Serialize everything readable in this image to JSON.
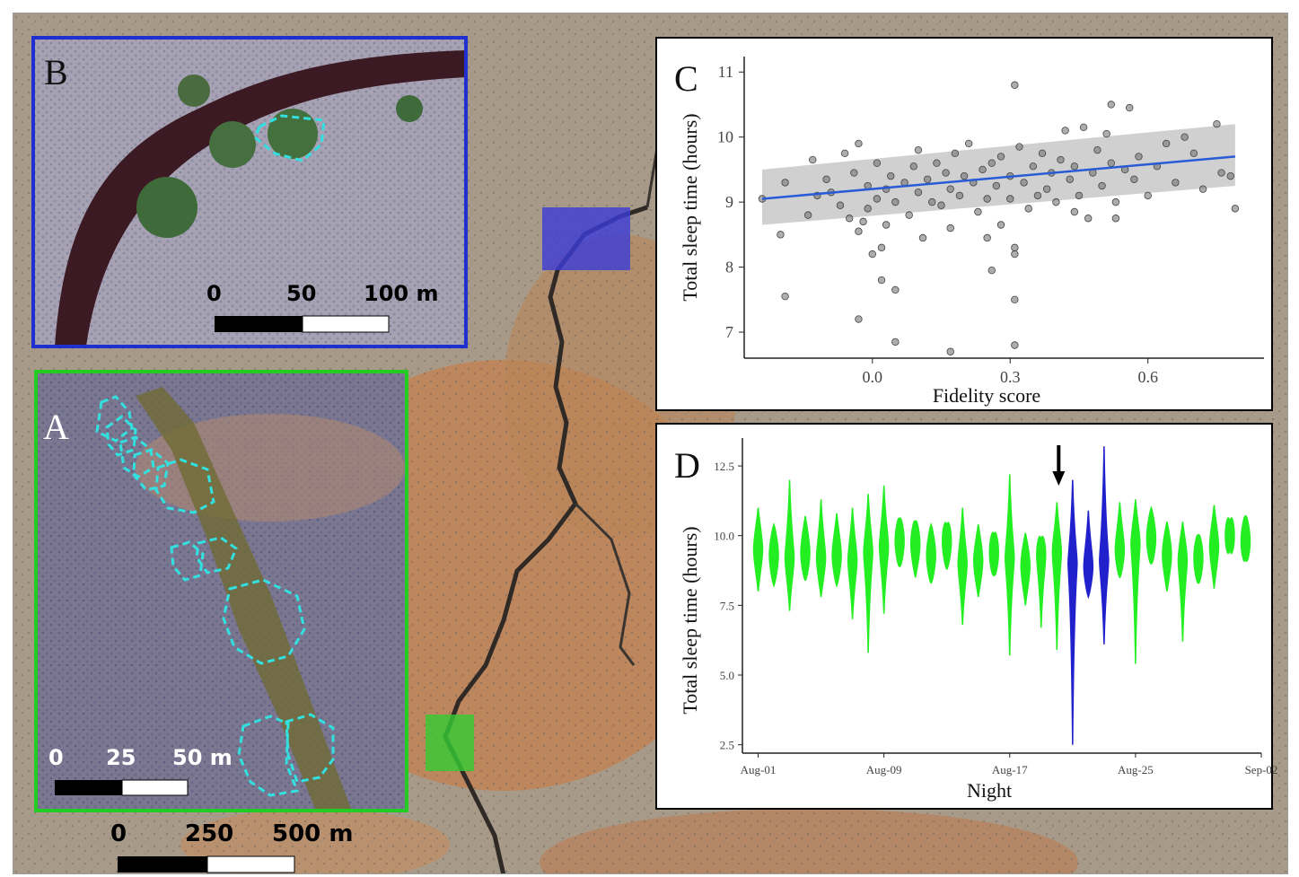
{
  "panels": {
    "A": {
      "letter": "A",
      "scale_labels": [
        "0",
        "25",
        "50 m"
      ],
      "border_color": "#22cc22"
    },
    "B": {
      "letter": "B",
      "scale_labels": [
        "0",
        "50",
        "100 m"
      ],
      "border_color": "#1f2fd0"
    },
    "main_scale_labels": [
      "0",
      "250",
      "500 m"
    ]
  },
  "colors": {
    "highlight_blue": "#3b3bd8",
    "highlight_green": "#33cc33",
    "outline_cyan": "#33e0e0",
    "trend_line": "#2a5bd7",
    "ci_band": "#c8c8c8",
    "point": "#6a6a6a",
    "violin_green": "#22ee22",
    "violin_blue": "#2020cc"
  },
  "chart_data": [
    {
      "panel_letter": "C",
      "type": "scatter",
      "xlabel": "Fidelity score",
      "ylabel": "Total sleep time (hours)",
      "xlim": [
        -0.24,
        0.8
      ],
      "ylim": [
        6.6,
        11.1
      ],
      "xticks": [
        "0.0",
        "0.3",
        "0.6"
      ],
      "xtick_values": [
        0.0,
        0.3,
        0.6
      ],
      "yticks": [
        "7",
        "8",
        "9",
        "10",
        "11"
      ],
      "ytick_values": [
        7,
        8,
        9,
        10,
        11
      ],
      "trend": {
        "x": [
          -0.24,
          0.79
        ],
        "y": [
          9.05,
          9.7
        ]
      },
      "ci": {
        "x": [
          -0.24,
          0.79
        ],
        "lower": [
          8.65,
          9.25
        ],
        "upper": [
          9.5,
          10.2
        ]
      },
      "points": [
        [
          -0.24,
          9.05
        ],
        [
          -0.2,
          8.5
        ],
        [
          -0.19,
          7.55
        ],
        [
          -0.19,
          9.3
        ],
        [
          -0.14,
          8.8
        ],
        [
          -0.13,
          9.65
        ],
        [
          -0.12,
          9.1
        ],
        [
          -0.1,
          9.35
        ],
        [
          -0.09,
          9.15
        ],
        [
          -0.07,
          8.95
        ],
        [
          -0.06,
          9.75
        ],
        [
          -0.05,
          8.75
        ],
        [
          -0.04,
          9.45
        ],
        [
          -0.03,
          8.55
        ],
        [
          -0.03,
          9.9
        ],
        [
          -0.03,
          7.2
        ],
        [
          -0.02,
          8.7
        ],
        [
          -0.01,
          9.25
        ],
        [
          -0.01,
          8.9
        ],
        [
          0.0,
          8.2
        ],
        [
          0.01,
          9.05
        ],
        [
          0.01,
          9.6
        ],
        [
          0.02,
          8.3
        ],
        [
          0.02,
          7.8
        ],
        [
          0.03,
          9.2
        ],
        [
          0.03,
          8.65
        ],
        [
          0.04,
          9.4
        ],
        [
          0.05,
          9.0
        ],
        [
          0.05,
          7.65
        ],
        [
          0.05,
          6.85
        ],
        [
          0.07,
          9.3
        ],
        [
          0.08,
          8.8
        ],
        [
          0.09,
          9.55
        ],
        [
          0.1,
          9.15
        ],
        [
          0.1,
          9.8
        ],
        [
          0.11,
          8.45
        ],
        [
          0.12,
          9.35
        ],
        [
          0.13,
          9.0
        ],
        [
          0.14,
          9.6
        ],
        [
          0.15,
          8.95
        ],
        [
          0.16,
          9.45
        ],
        [
          0.17,
          9.2
        ],
        [
          0.17,
          8.6
        ],
        [
          0.17,
          6.7
        ],
        [
          0.18,
          9.75
        ],
        [
          0.19,
          9.1
        ],
        [
          0.2,
          9.4
        ],
        [
          0.21,
          9.9
        ],
        [
          0.22,
          9.3
        ],
        [
          0.23,
          8.85
        ],
        [
          0.24,
          9.5
        ],
        [
          0.25,
          9.05
        ],
        [
          0.25,
          8.45
        ],
        [
          0.26,
          9.6
        ],
        [
          0.26,
          7.95
        ],
        [
          0.27,
          9.25
        ],
        [
          0.28,
          9.7
        ],
        [
          0.28,
          8.65
        ],
        [
          0.3,
          9.4
        ],
        [
          0.3,
          9.05
        ],
        [
          0.31,
          10.8
        ],
        [
          0.31,
          8.3
        ],
        [
          0.31,
          8.2
        ],
        [
          0.31,
          7.5
        ],
        [
          0.31,
          6.8
        ],
        [
          0.32,
          9.85
        ],
        [
          0.33,
          9.3
        ],
        [
          0.34,
          8.9
        ],
        [
          0.35,
          9.55
        ],
        [
          0.36,
          9.1
        ],
        [
          0.37,
          9.75
        ],
        [
          0.38,
          9.2
        ],
        [
          0.39,
          9.45
        ],
        [
          0.4,
          9.0
        ],
        [
          0.41,
          9.65
        ],
        [
          0.42,
          10.1
        ],
        [
          0.43,
          9.35
        ],
        [
          0.44,
          8.85
        ],
        [
          0.44,
          9.55
        ],
        [
          0.45,
          9.1
        ],
        [
          0.46,
          10.15
        ],
        [
          0.47,
          8.75
        ],
        [
          0.48,
          9.45
        ],
        [
          0.49,
          9.8
        ],
        [
          0.5,
          9.25
        ],
        [
          0.51,
          10.05
        ],
        [
          0.52,
          9.6
        ],
        [
          0.52,
          10.5
        ],
        [
          0.53,
          9.0
        ],
        [
          0.53,
          8.75
        ],
        [
          0.55,
          9.5
        ],
        [
          0.56,
          10.45
        ],
        [
          0.57,
          9.35
        ],
        [
          0.58,
          9.7
        ],
        [
          0.6,
          9.1
        ],
        [
          0.62,
          9.55
        ],
        [
          0.64,
          9.9
        ],
        [
          0.66,
          9.3
        ],
        [
          0.68,
          10.0
        ],
        [
          0.7,
          9.75
        ],
        [
          0.72,
          9.2
        ],
        [
          0.75,
          10.2
        ],
        [
          0.76,
          9.45
        ],
        [
          0.78,
          9.4
        ],
        [
          0.79,
          8.9
        ]
      ]
    },
    {
      "panel_letter": "D",
      "type": "violin",
      "xlabel": "Night",
      "ylabel": "Total sleep time (hours)",
      "xlim": [
        0,
        33
      ],
      "ylim": [
        2.2,
        13.5
      ],
      "xticks": [
        "Aug-01",
        "Aug-09",
        "Aug-17",
        "Aug-25",
        "Sep-02"
      ],
      "xtick_nights": [
        1,
        9,
        17,
        25,
        33
      ],
      "yticks": [
        "2.5",
        "5.0",
        "7.5",
        "10.0",
        "12.5"
      ],
      "ytick_values": [
        2.5,
        5.0,
        7.5,
        10.0,
        12.5
      ],
      "arrow_night": 20,
      "nights": [
        {
          "night": 1,
          "min": 8.0,
          "max": 11.0,
          "median": 9.5,
          "group": "green"
        },
        {
          "night": 2,
          "min": 8.2,
          "max": 10.4,
          "median": 9.3,
          "group": "green"
        },
        {
          "night": 3,
          "min": 7.3,
          "max": 12.0,
          "median": 9.2,
          "group": "green"
        },
        {
          "night": 4,
          "min": 8.4,
          "max": 10.7,
          "median": 9.4,
          "group": "green"
        },
        {
          "night": 5,
          "min": 7.8,
          "max": 11.3,
          "median": 9.2,
          "group": "green"
        },
        {
          "night": 6,
          "min": 8.2,
          "max": 10.8,
          "median": 9.3,
          "group": "green"
        },
        {
          "night": 7,
          "min": 7.0,
          "max": 11.0,
          "median": 9.1,
          "group": "green"
        },
        {
          "night": 8,
          "min": 5.8,
          "max": 11.5,
          "median": 9.4,
          "group": "green"
        },
        {
          "night": 9,
          "min": 7.2,
          "max": 11.8,
          "median": 9.6,
          "group": "green"
        },
        {
          "night": 10,
          "min": 8.9,
          "max": 10.6,
          "median": 9.8,
          "group": "green"
        },
        {
          "night": 11,
          "min": 8.5,
          "max": 10.5,
          "median": 9.7,
          "group": "green"
        },
        {
          "night": 12,
          "min": 8.3,
          "max": 10.4,
          "median": 9.3,
          "group": "green"
        },
        {
          "night": 13,
          "min": 8.8,
          "max": 10.3,
          "median": 9.8,
          "group": "green"
        },
        {
          "night": 14,
          "min": 6.8,
          "max": 11.0,
          "median": 9.0,
          "group": "green"
        },
        {
          "night": 15,
          "min": 7.8,
          "max": 10.4,
          "median": 9.1,
          "group": "green"
        },
        {
          "night": 16,
          "min": 8.6,
          "max": 10.0,
          "median": 9.4,
          "group": "green"
        },
        {
          "night": 17,
          "min": 5.7,
          "max": 12.2,
          "median": 9.2,
          "group": "green"
        },
        {
          "night": 18,
          "min": 7.5,
          "max": 10.1,
          "median": 8.9,
          "group": "green"
        },
        {
          "night": 19,
          "min": 6.7,
          "max": 9.8,
          "median": 9.3,
          "group": "green"
        },
        {
          "night": 20,
          "min": 5.9,
          "max": 11.2,
          "median": 9.4,
          "group": "green"
        },
        {
          "night": 21,
          "min": 2.5,
          "max": 12.0,
          "median": 9.0,
          "group": "blue"
        },
        {
          "night": 22,
          "min": 7.8,
          "max": 10.9,
          "median": 8.9,
          "group": "blue"
        },
        {
          "night": 23,
          "min": 6.1,
          "max": 13.2,
          "median": 9.1,
          "group": "blue"
        },
        {
          "night": 24,
          "min": 8.5,
          "max": 11.2,
          "median": 9.5,
          "group": "green"
        },
        {
          "night": 25,
          "min": 5.4,
          "max": 11.3,
          "median": 9.7,
          "group": "green"
        },
        {
          "night": 26,
          "min": 9.0,
          "max": 11.0,
          "median": 9.9,
          "group": "green"
        },
        {
          "night": 27,
          "min": 8.0,
          "max": 10.5,
          "median": 9.3,
          "group": "green"
        },
        {
          "night": 28,
          "min": 6.2,
          "max": 10.5,
          "median": 9.1,
          "group": "green"
        },
        {
          "night": 29,
          "min": 8.3,
          "max": 10.0,
          "median": 9.2,
          "group": "green"
        },
        {
          "night": 30,
          "min": 8.1,
          "max": 11.1,
          "median": 9.6,
          "group": "green"
        },
        {
          "night": 31,
          "min": 9.6,
          "max": 10.4,
          "median": 10.0,
          "group": "green"
        },
        {
          "night": 32,
          "min": 9.2,
          "max": 10.7,
          "median": 9.8,
          "group": "green"
        }
      ]
    }
  ]
}
